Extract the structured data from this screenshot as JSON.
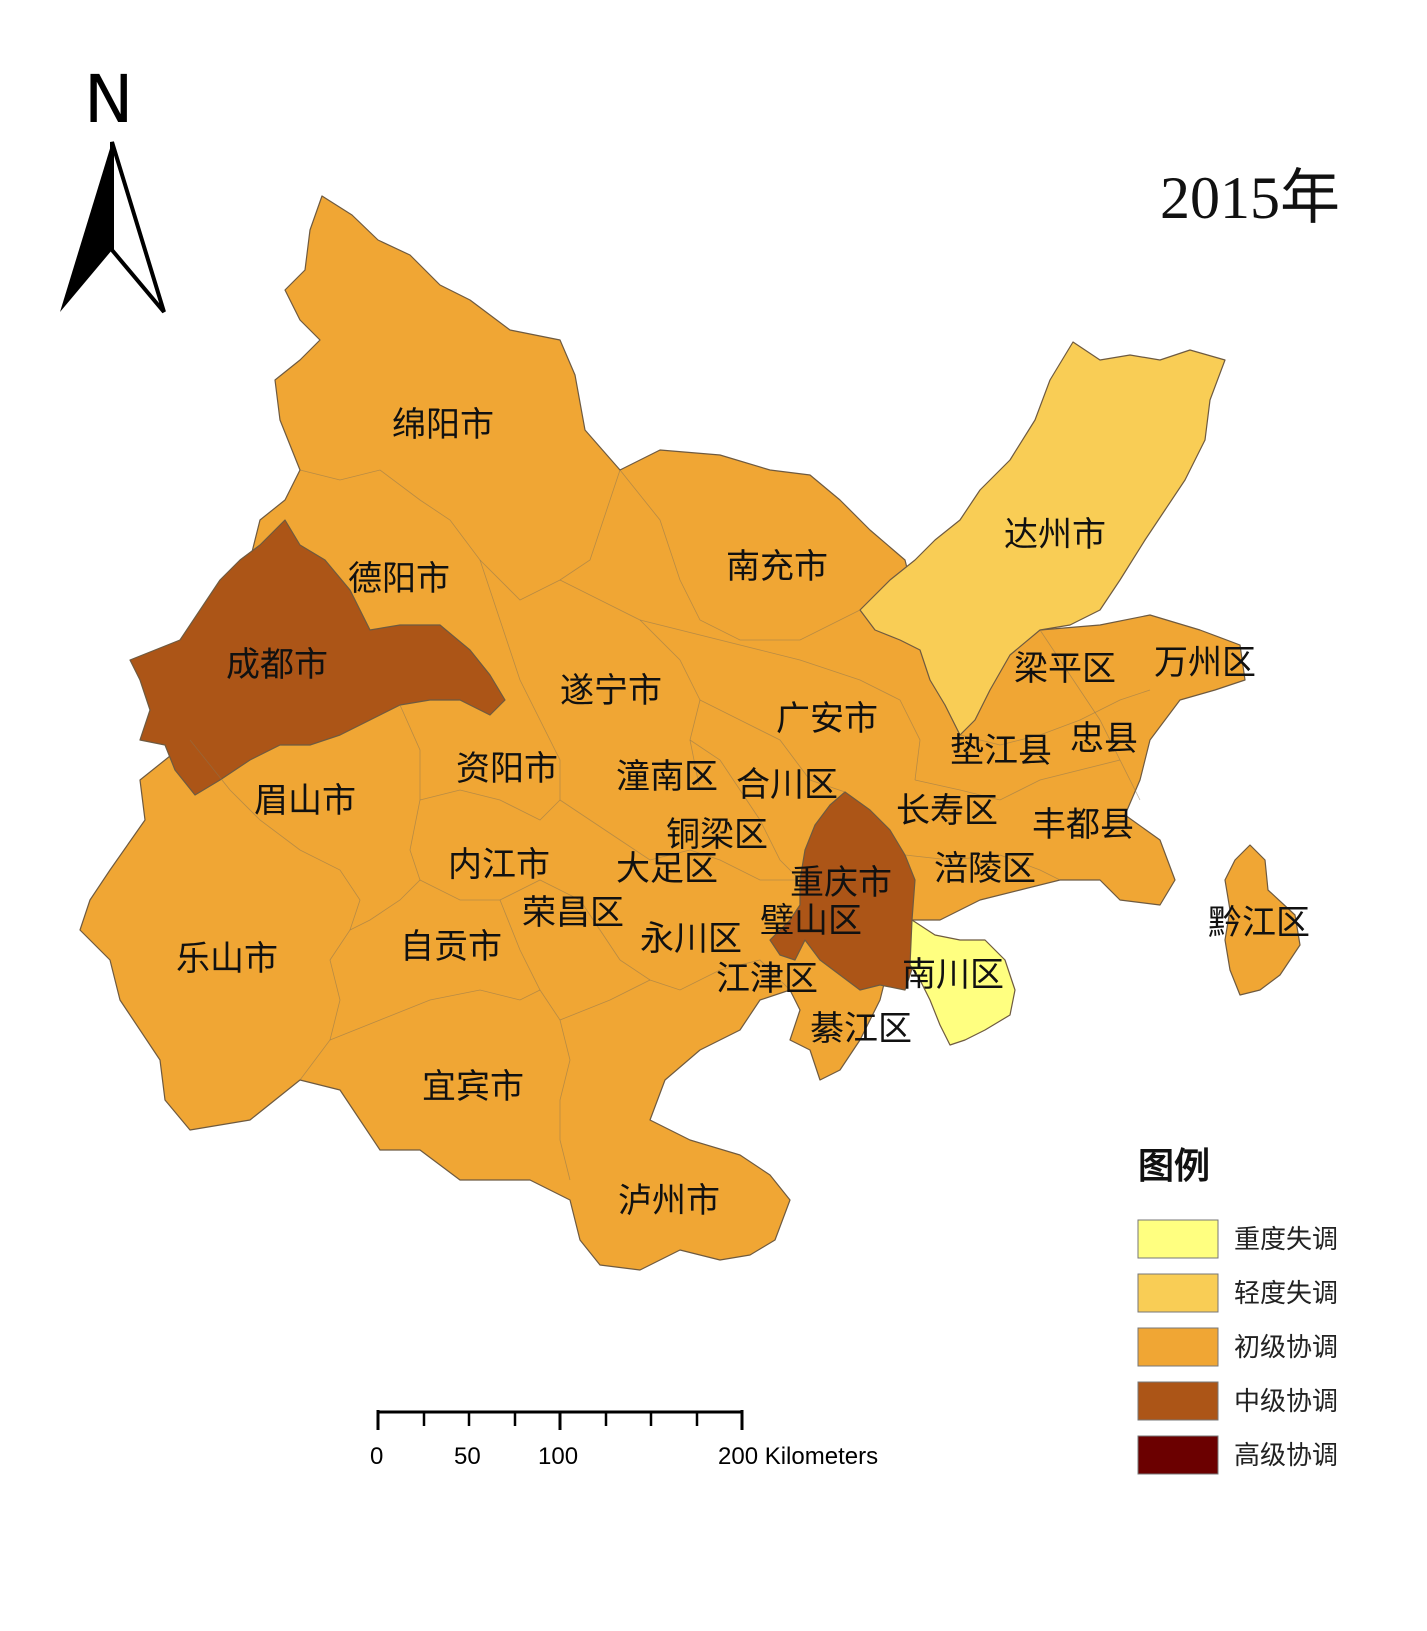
{
  "title": "2015年",
  "north_arrow": {
    "label": "N"
  },
  "colors": {
    "severe_imbalance": "#FFFF80",
    "mild_imbalance": "#F9CD55",
    "primary_coordination": "#F0A634",
    "intermediate_coordination": "#AC5517",
    "advanced_coordination": "#6B0000"
  },
  "legend": {
    "title": "图例",
    "items": [
      {
        "label": "重度失调",
        "color": "#FFFF80"
      },
      {
        "label": "轻度失调",
        "color": "#F9CD55"
      },
      {
        "label": "初级协调",
        "color": "#F0A634"
      },
      {
        "label": "中级协调",
        "color": "#AC5517"
      },
      {
        "label": "高级协调",
        "color": "#6B0000"
      }
    ]
  },
  "scale_bar": {
    "labels": [
      "0",
      "50",
      "100",
      "200 Kilometers"
    ]
  },
  "regions": [
    {
      "name": "绵阳市",
      "class": "初级协调"
    },
    {
      "name": "德阳市",
      "class": "初级协调"
    },
    {
      "name": "成都市",
      "class": "中级协调"
    },
    {
      "name": "南充市",
      "class": "初级协调"
    },
    {
      "name": "达州市",
      "class": "轻度失调"
    },
    {
      "name": "遂宁市",
      "class": "初级协调"
    },
    {
      "name": "广安市",
      "class": "初级协调"
    },
    {
      "name": "梁平区",
      "class": "初级协调"
    },
    {
      "name": "万州区",
      "class": "初级协调"
    },
    {
      "name": "资阳市",
      "class": "初级协调"
    },
    {
      "name": "潼南区",
      "class": "初级协调"
    },
    {
      "name": "合川区",
      "class": "初级协调"
    },
    {
      "name": "垫江县",
      "class": "初级协调"
    },
    {
      "name": "忠县",
      "class": "初级协调"
    },
    {
      "name": "眉山市",
      "class": "初级协调"
    },
    {
      "name": "长寿区",
      "class": "初级协调"
    },
    {
      "name": "丰都县",
      "class": "初级协调"
    },
    {
      "name": "铜梁区",
      "class": "初级协调"
    },
    {
      "name": "内江市",
      "class": "初级协调"
    },
    {
      "name": "大足区",
      "class": "初级协调"
    },
    {
      "name": "重庆市",
      "class": "中级协调"
    },
    {
      "name": "涪陵区",
      "class": "初级协调"
    },
    {
      "name": "荣昌区",
      "class": "初级协调"
    },
    {
      "name": "璧山区",
      "class": "中级协调"
    },
    {
      "name": "黔江区",
      "class": "初级协调"
    },
    {
      "name": "乐山市",
      "class": "初级协调"
    },
    {
      "name": "自贡市",
      "class": "初级协调"
    },
    {
      "name": "永川区",
      "class": "初级协调"
    },
    {
      "name": "南川区",
      "class": "重度失调"
    },
    {
      "name": "江津区",
      "class": "初级协调"
    },
    {
      "name": "綦江区",
      "class": "初级协调"
    },
    {
      "name": "宜宾市",
      "class": "初级协调"
    },
    {
      "name": "泸州市",
      "class": "初级协调"
    }
  ]
}
